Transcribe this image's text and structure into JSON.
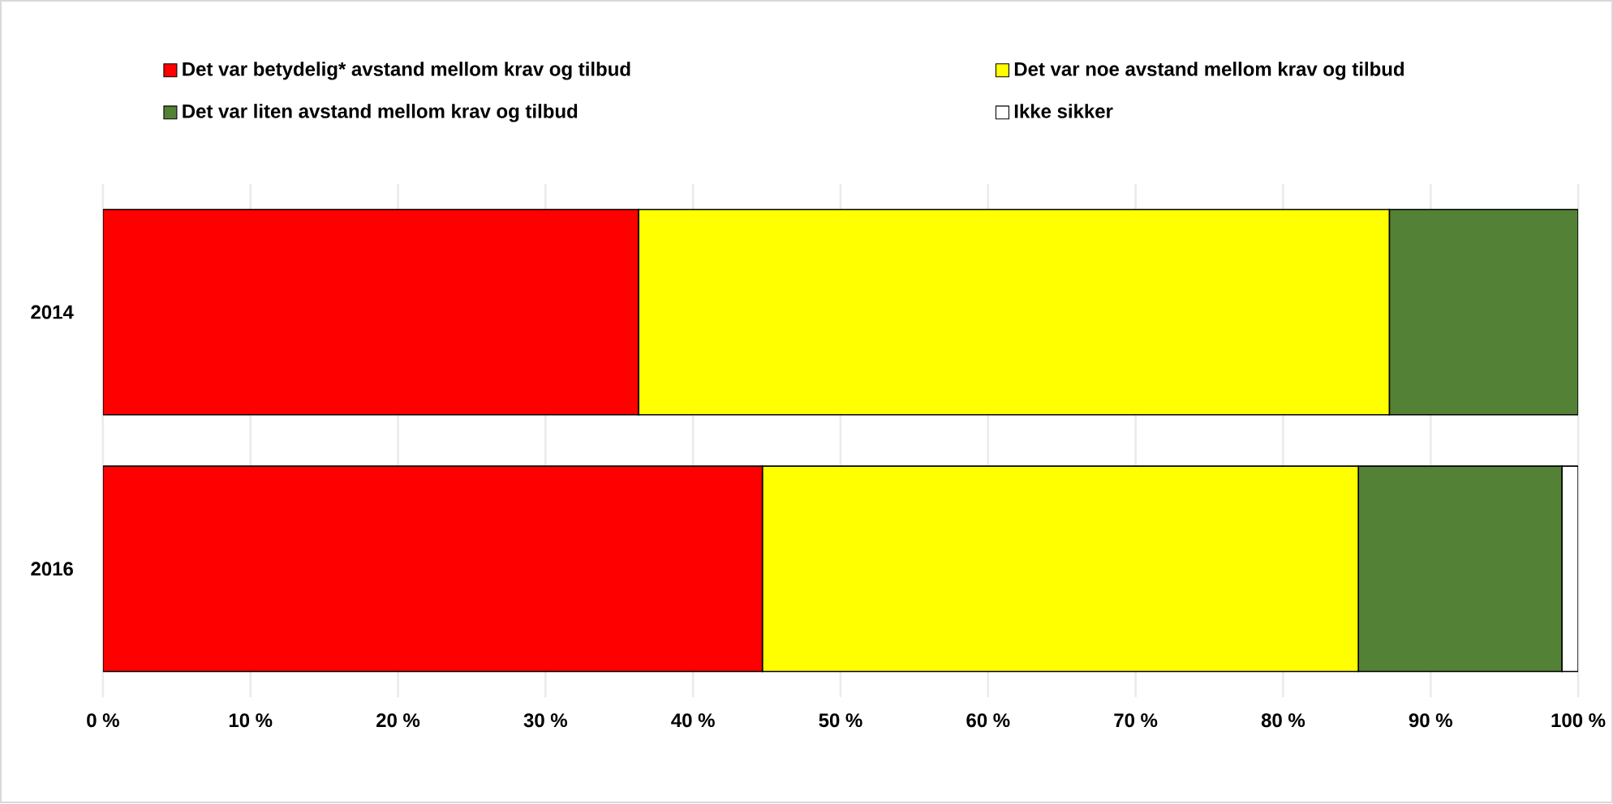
{
  "chart_data": {
    "type": "bar",
    "orientation": "horizontal",
    "stacked": true,
    "categories": [
      "2014",
      "2016"
    ],
    "series": [
      {
        "name": "Det var betydelig* avstand mellom krav og tilbud",
        "color": "#ff0000",
        "values": [
          36.3,
          44.7
        ]
      },
      {
        "name": "Det var noe avstand mellom krav og tilbud",
        "color": "#ffff00",
        "values": [
          50.9,
          40.4
        ]
      },
      {
        "name": "Det var liten avstand mellom krav og tilbud",
        "color": "#538135",
        "values": [
          12.8,
          13.8
        ]
      },
      {
        "name": "Ikke sikker",
        "color": "#ffffff",
        "values": [
          0,
          1.1
        ]
      }
    ],
    "xlim": [
      0,
      100
    ],
    "xticks": [
      {
        "value": 0,
        "label": "0 %"
      },
      {
        "value": 10,
        "label": "10 %"
      },
      {
        "value": 20,
        "label": "20 %"
      },
      {
        "value": 30,
        "label": "30 %"
      },
      {
        "value": 40,
        "label": "40 %"
      },
      {
        "value": 50,
        "label": "50 %"
      },
      {
        "value": 60,
        "label": "60 %"
      },
      {
        "value": 70,
        "label": "70 %"
      },
      {
        "value": 80,
        "label": "80 %"
      },
      {
        "value": 90,
        "label": "90 %"
      },
      {
        "value": 100,
        "label": "100 %"
      }
    ],
    "grid": "x",
    "legend": "top"
  }
}
